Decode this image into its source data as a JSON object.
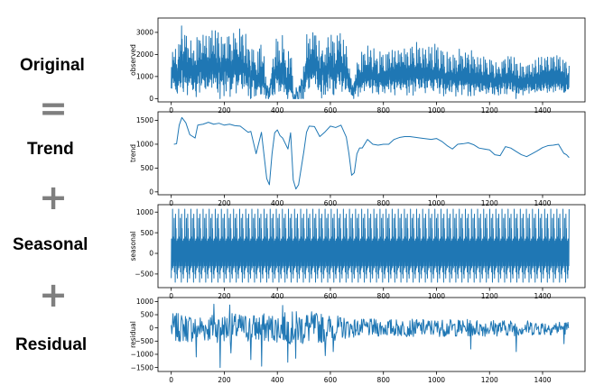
{
  "labels": {
    "original": "Original",
    "equals": "=",
    "trend": "Trend",
    "plus1": "+",
    "seasonal": "Seasonal",
    "plus2": "+",
    "residual": "Residual"
  },
  "line_color": "#1f77b4",
  "chart_data": [
    {
      "type": "line",
      "ylabel": "observed",
      "xlim": [
        -50,
        1560
      ],
      "ylim": [
        -150,
        3650
      ],
      "xticks": [
        0,
        200,
        400,
        600,
        800,
        1000,
        1200,
        1400
      ],
      "yticks": [
        0,
        1000,
        2000,
        3000
      ],
      "series": [
        {
          "x_start": 0,
          "x_end": 1500,
          "points": 1500,
          "description_values": "sum of trend + seasonal + residual"
        }
      ]
    },
    {
      "type": "line",
      "ylabel": "trend",
      "xlim": [
        -50,
        1560
      ],
      "ylim": [
        -60,
        1680
      ],
      "xticks": [
        0,
        200,
        400,
        600,
        800,
        1000,
        1200,
        1400
      ],
      "yticks": [
        0,
        500,
        1000,
        1500
      ],
      "series": [
        {
          "x": [
            10,
            20,
            30,
            40,
            55,
            70,
            90,
            100,
            120,
            140,
            160,
            180,
            200,
            220,
            240,
            260,
            290,
            300,
            320,
            340,
            360,
            370,
            380,
            390,
            400,
            410,
            420,
            440,
            450,
            460,
            470,
            480,
            490,
            500,
            510,
            520,
            540,
            560,
            580,
            600,
            620,
            640,
            660,
            670,
            680,
            690,
            700,
            710,
            720,
            740,
            760,
            780,
            800,
            820,
            840,
            860,
            880,
            900,
            940,
            980,
            1000,
            1020,
            1040,
            1060,
            1080,
            1100,
            1120,
            1140,
            1160,
            1180,
            1200,
            1220,
            1240,
            1260,
            1280,
            1300,
            1320,
            1340,
            1360,
            1380,
            1400,
            1420,
            1440,
            1460,
            1480,
            1490,
            1500
          ],
          "y": [
            1000,
            1010,
            1400,
            1560,
            1450,
            1200,
            1130,
            1400,
            1420,
            1460,
            1420,
            1440,
            1400,
            1420,
            1390,
            1380,
            1250,
            1270,
            800,
            1250,
            280,
            150,
            800,
            1240,
            1300,
            1180,
            1130,
            900,
            1240,
            250,
            60,
            150,
            500,
            850,
            1250,
            1380,
            1370,
            1160,
            1260,
            1380,
            1350,
            1400,
            1150,
            800,
            350,
            400,
            800,
            920,
            920,
            1100,
            1000,
            980,
            1000,
            1000,
            1100,
            1140,
            1160,
            1160,
            1130,
            1100,
            1120,
            1060,
            970,
            900,
            1000,
            1010,
            1030,
            990,
            920,
            900,
            880,
            780,
            760,
            950,
            920,
            850,
            780,
            740,
            800,
            860,
            930,
            970,
            980,
            1000,
            810,
            780,
            720
          ]
        }
      ]
    },
    {
      "type": "line",
      "ylabel": "seasonal",
      "xlim": [
        -50,
        1560
      ],
      "ylim": [
        -830,
        1180
      ],
      "xticks": [
        0,
        200,
        400,
        600,
        800,
        1000,
        1200,
        1400
      ],
      "yticks": [
        -500,
        0,
        500,
        1000
      ],
      "series": [
        {
          "period": 23,
          "pattern": [
            -600,
            350,
            -400,
            150,
            -300,
            1070,
            -350,
            400,
            -200,
            100,
            -300,
            850,
            -450,
            350,
            200,
            -700,
            950,
            -300,
            600,
            -100,
            200,
            -500,
            300
          ]
        }
      ]
    },
    {
      "type": "line",
      "ylabel": "residual",
      "xlim": [
        -50,
        1560
      ],
      "ylim": [
        -1650,
        1150
      ],
      "xticks": [
        0,
        200,
        400,
        600,
        800,
        1000,
        1200,
        1400
      ],
      "yticks": [
        -1500,
        -1000,
        -500,
        0,
        500,
        1000
      ],
      "series": [
        {
          "x_start": 0,
          "x_end": 1500,
          "points": 700,
          "amplitude": [
            [
              0,
              650
            ],
            [
              400,
              650
            ],
            [
              500,
              800
            ],
            [
              700,
              400
            ],
            [
              1200,
              380
            ],
            [
              1500,
              300
            ]
          ],
          "spikes": [
            [
              185,
              -1500
            ],
            [
              300,
              -1200
            ],
            [
              340,
              -1450
            ],
            [
              440,
              -1300
            ],
            [
              580,
              -1050
            ],
            [
              610,
              -900
            ],
            [
              225,
              -950
            ],
            [
              470,
              -1150
            ],
            [
              95,
              -1100
            ],
            [
              1130,
              -800
            ],
            [
              1300,
              -900
            ],
            [
              1480,
              -600
            ],
            [
              160,
              900
            ],
            [
              220,
              870
            ],
            [
              420,
              850
            ]
          ]
        }
      ]
    }
  ]
}
